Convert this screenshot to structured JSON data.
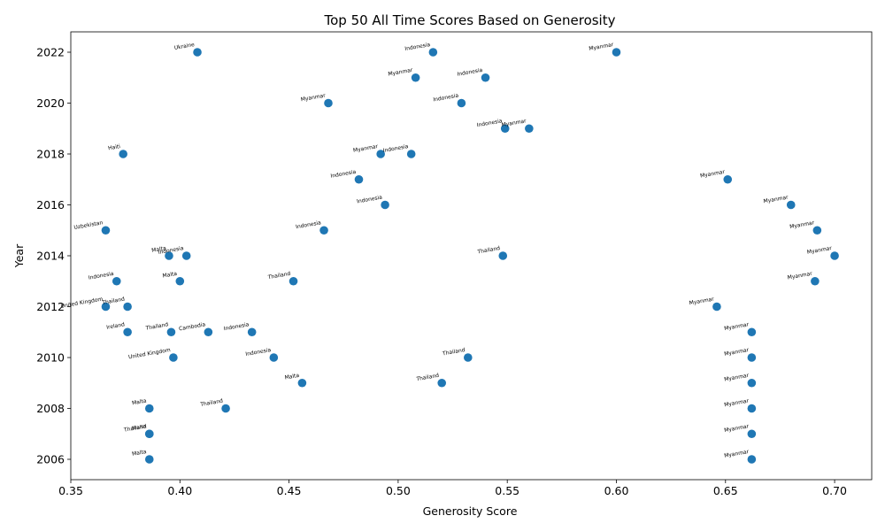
{
  "chart_data": {
    "type": "scatter",
    "title": "Top 50 All Time Scores Based on Generosity",
    "xlabel": "Generosity Score",
    "ylabel": "Year",
    "xlim": [
      0.35,
      0.717
    ],
    "ylim": [
      2005.2,
      2022.8
    ],
    "xticks": [
      0.35,
      0.4,
      0.45,
      0.5,
      0.55,
      0.6,
      0.65,
      0.7
    ],
    "xtick_labels": [
      "0.35",
      "0.40",
      "0.45",
      "0.50",
      "0.55",
      "0.60",
      "0.65",
      "0.70"
    ],
    "yticks": [
      2006,
      2008,
      2010,
      2012,
      2014,
      2016,
      2018,
      2020,
      2022
    ],
    "ytick_labels": [
      "2006",
      "2008",
      "2010",
      "2012",
      "2014",
      "2016",
      "2018",
      "2020",
      "2022"
    ],
    "marker_color": "#1f77b4",
    "grid": false,
    "points": [
      {
        "x": 0.408,
        "y": 2022,
        "label": "Ukraine"
      },
      {
        "x": 0.516,
        "y": 2022,
        "label": "Indonesia"
      },
      {
        "x": 0.6,
        "y": 2022,
        "label": "Myanmar"
      },
      {
        "x": 0.508,
        "y": 2021,
        "label": "Myanmar"
      },
      {
        "x": 0.54,
        "y": 2021,
        "label": "Indonesia"
      },
      {
        "x": 0.468,
        "y": 2020,
        "label": "Myanmar"
      },
      {
        "x": 0.529,
        "y": 2020,
        "label": "Indonesia"
      },
      {
        "x": 0.549,
        "y": 2019,
        "label": "Indonesia"
      },
      {
        "x": 0.56,
        "y": 2019,
        "label": "Myanmar"
      },
      {
        "x": 0.374,
        "y": 2018,
        "label": "Haiti"
      },
      {
        "x": 0.492,
        "y": 2018,
        "label": "Myanmar"
      },
      {
        "x": 0.506,
        "y": 2018,
        "label": "Indonesia"
      },
      {
        "x": 0.482,
        "y": 2017,
        "label": "Indonesia"
      },
      {
        "x": 0.651,
        "y": 2017,
        "label": "Myanmar"
      },
      {
        "x": 0.494,
        "y": 2016,
        "label": "Indonesia"
      },
      {
        "x": 0.68,
        "y": 2016,
        "label": "Myanmar"
      },
      {
        "x": 0.366,
        "y": 2015,
        "label": "Uzbekistan"
      },
      {
        "x": 0.466,
        "y": 2015,
        "label": "Indonesia"
      },
      {
        "x": 0.692,
        "y": 2015,
        "label": "Myanmar"
      },
      {
        "x": 0.395,
        "y": 2014,
        "label": "Malta"
      },
      {
        "x": 0.403,
        "y": 2014,
        "label": "Indonesia"
      },
      {
        "x": 0.548,
        "y": 2014,
        "label": "Thailand"
      },
      {
        "x": 0.7,
        "y": 2014,
        "label": "Myanmar"
      },
      {
        "x": 0.371,
        "y": 2013,
        "label": "Indonesia"
      },
      {
        "x": 0.4,
        "y": 2013,
        "label": "Malta"
      },
      {
        "x": 0.452,
        "y": 2013,
        "label": "Thailand"
      },
      {
        "x": 0.691,
        "y": 2013,
        "label": "Myanmar"
      },
      {
        "x": 0.366,
        "y": 2012,
        "label": "United Kingdom"
      },
      {
        "x": 0.376,
        "y": 2012,
        "label": "Thailand"
      },
      {
        "x": 0.646,
        "y": 2012,
        "label": "Myanmar"
      },
      {
        "x": 0.376,
        "y": 2011,
        "label": "Ireland"
      },
      {
        "x": 0.396,
        "y": 2011,
        "label": "Thailand"
      },
      {
        "x": 0.413,
        "y": 2011,
        "label": "Cambodia"
      },
      {
        "x": 0.433,
        "y": 2011,
        "label": "Indonesia"
      },
      {
        "x": 0.662,
        "y": 2011,
        "label": "Myanmar"
      },
      {
        "x": 0.397,
        "y": 2010,
        "label": "United Kingdom"
      },
      {
        "x": 0.443,
        "y": 2010,
        "label": "Indonesia"
      },
      {
        "x": 0.532,
        "y": 2010,
        "label": "Thailand"
      },
      {
        "x": 0.662,
        "y": 2010,
        "label": "Myanmar"
      },
      {
        "x": 0.456,
        "y": 2009,
        "label": "Malta"
      },
      {
        "x": 0.52,
        "y": 2009,
        "label": "Thailand"
      },
      {
        "x": 0.662,
        "y": 2009,
        "label": "Myanmar"
      },
      {
        "x": 0.386,
        "y": 2008,
        "label": "Malta"
      },
      {
        "x": 0.421,
        "y": 2008,
        "label": "Thailand"
      },
      {
        "x": 0.662,
        "y": 2008,
        "label": "Myanmar"
      },
      {
        "x": 0.386,
        "y": 2007,
        "label": "Thailand"
      },
      {
        "x": 0.386,
        "y": 2007,
        "label": "Malta"
      },
      {
        "x": 0.662,
        "y": 2007,
        "label": "Myanmar"
      },
      {
        "x": 0.386,
        "y": 2006,
        "label": "Malta"
      },
      {
        "x": 0.662,
        "y": 2006,
        "label": "Myanmar"
      }
    ]
  }
}
